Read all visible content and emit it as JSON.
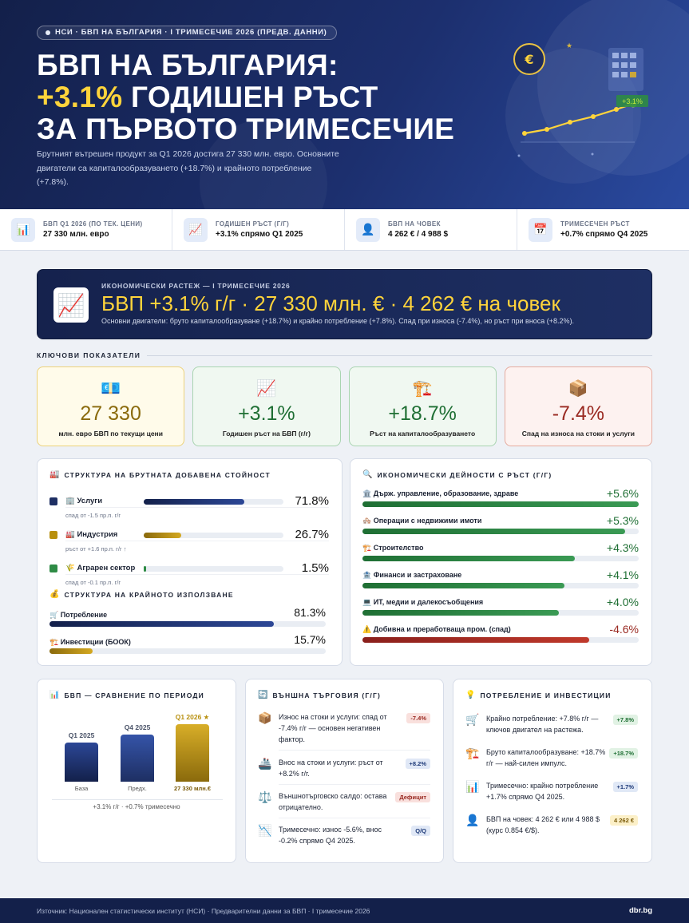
{
  "hero": {
    "pill": "НСИ · БВП НА БЪЛГАРИЯ · I ТРИМЕСЕЧИЕ 2026 (ПРЕДВ. ДАННИ)",
    "title_line1": "БВП НА БЪЛГАРИЯ:",
    "title_highlight": "+3.1%",
    "title_line2_rest": " ГОДИШЕН РЪСТ",
    "title_line3": "ЗА ПЪРВОТО ТРИМЕСЕЧИЕ",
    "description": "Брутният вътрешен продукт за Q1 2026 достига 27 330 млн. евро. Основните двигатели са капиталообразуването (+18.7%) и крайното потребление (+7.8%).",
    "art_badge": "+3.1%",
    "art_coin": "€"
  },
  "kpi_bar": [
    {
      "icon": "bar-chart-icon",
      "glyph": "📊",
      "label": "БВП Q1 2026 (ПО ТЕК. ЦЕНИ)",
      "value": "27 330 млн. евро"
    },
    {
      "icon": "trend-up-icon",
      "glyph": "📈",
      "label": "ГОДИШЕН РЪСТ (Г/Г)",
      "value": "+3.1% спрямо Q1 2025"
    },
    {
      "icon": "person-icon",
      "glyph": "👤",
      "label": "БВП НА ЧОВЕК",
      "value": "4 262 € / 4 988 $"
    },
    {
      "icon": "calendar-icon",
      "glyph": "📅",
      "label": "ТРИМЕСЕЧЕН РЪСТ",
      "value": "+0.7% спрямо Q4 2025"
    }
  ],
  "banner": {
    "icon": "trend-up-icon",
    "subtitle": "ИКОНОМИЧЕСКИ РАСТЕЖ — I ТРИМЕСЕЧИЕ 2026",
    "headline": "БВП +3.1% г/г · 27 330 млн. € · 4 262 € на човек",
    "note": "Основни двигатели: бруто капиталообразуване (+18.7%) и крайно потребление (+7.8%). Спад при износа (-7.4%), но ръст при вноса (+8.2%)."
  },
  "key_section_title": "КЛЮЧОВИ ПОКАЗАТЕЛИ",
  "key_cards": [
    {
      "icon": "money-icon",
      "glyph": "💶",
      "value": "27 330",
      "label": "млн. евро БВП по текущи цени"
    },
    {
      "icon": "trend-up-icon",
      "glyph": "📈",
      "value": "+3.1%",
      "label": "Годишен ръст на БВП (г/г)"
    },
    {
      "icon": "crane-icon",
      "glyph": "🏗️",
      "value": "+18.7%",
      "label": "Ръст на капиталообразуването"
    },
    {
      "icon": "package-icon",
      "glyph": "📦",
      "value": "-7.4%",
      "label": "Спад на износа на стоки и услуги"
    }
  ],
  "structure": {
    "title": "СТРУКТУРА НА БРУТНАТА ДОБАВЕНА СТОЙНОСТ",
    "title_glyph": "🏭",
    "rows": [
      {
        "name": "🏢 Услуги",
        "value": 71.8,
        "value_text": "71.8%",
        "note": "спад от -1.5 пр.п. г/г",
        "color": "#1e2f63"
      },
      {
        "name": "🏭 Индустрия",
        "value": 26.7,
        "value_text": "26.7%",
        "note": "ръст от +1.6 пр.п. г/г ↑",
        "color": "#b8900f"
      },
      {
        "name": "🌾 Аграрен сектор",
        "value": 1.5,
        "value_text": "1.5%",
        "note": "спад от -0.1 пр.п. г/г",
        "color": "#2e8b45"
      }
    ],
    "final_use_title": "СТРУКТУРА НА КРАЙНОТО ИЗПОЛЗВАНЕ",
    "final_use_glyph": "💰",
    "final_use": [
      {
        "name": "🛒 Потребление",
        "value": 81.3,
        "value_text": "81.3%",
        "color": "#1e2f63"
      },
      {
        "name": "🏗️ Инвестиции (БООК)",
        "value": 15.7,
        "value_text": "15.7%",
        "color": "#b8900f"
      }
    ]
  },
  "activities": {
    "title": "ИКОНОМИЧЕСКИ ДЕЙНОСТИ С РЪСТ (Г/Г)",
    "title_glyph": "🔍",
    "rows": [
      {
        "name": "🏛️ Държ. управление, образование, здраве",
        "value": 5.6,
        "value_text": "+5.6%"
      },
      {
        "name": "🏘️ Операции с недвижими имоти",
        "value": 5.3,
        "value_text": "+5.3%"
      },
      {
        "name": "🏗️ Строителство",
        "value": 4.3,
        "value_text": "+4.3%"
      },
      {
        "name": "🏦 Финанси и застраховане",
        "value": 4.1,
        "value_text": "+4.1%"
      },
      {
        "name": "💻 ИТ, медии и далекосъобщения",
        "value": 4.0,
        "value_text": "+4.0%"
      },
      {
        "name": "⚠️ Добивна и преработваща пром. (спад)",
        "value": -4.6,
        "value_text": "-4.6%"
      }
    ]
  },
  "comparison": {
    "title": "БВП — СРАВНЕНИЕ ПО ПЕРИОДИ",
    "title_glyph": "📊",
    "bars": [
      {
        "label": "Q1 2025",
        "caption": "База",
        "relative_height": 0.68,
        "color": "#1e2f63"
      },
      {
        "label": "Q4 2025",
        "caption": "Предх.",
        "relative_height": 0.82,
        "color": "#2c4796"
      },
      {
        "label": "Q1 2026 ★",
        "caption": "27 330 млн.€",
        "relative_height": 1.0,
        "color": "#b8900f"
      }
    ],
    "footnote": "+3.1% г/г · +0.7% тримесечно"
  },
  "trade": {
    "title": "ВЪНШНА ТЪРГОВИЯ (Г/Г)",
    "title_glyph": "🔄",
    "items": [
      {
        "glyph": "📦",
        "icon": "package-icon",
        "text": "Износ на стоки и услуги: спад от -7.4% г/г — основен негативен фактор.",
        "badge": "-7.4%",
        "badge_class": "b-red"
      },
      {
        "glyph": "🚢",
        "icon": "ship-icon",
        "text": "Внос на стоки и услуги: ръст от +8.2% г/г.",
        "badge": "+8.2%",
        "badge_class": "b-blue"
      },
      {
        "glyph": "⚖️",
        "icon": "scales-icon",
        "text": "Външнотърговско салдо: остава отрицателно.",
        "badge": "Дефицит",
        "badge_class": "b-red"
      },
      {
        "glyph": "📉",
        "icon": "trend-down-icon",
        "text": "Тримесечно: износ -5.6%, внос -0.2% спрямо Q4 2025.",
        "badge": "Q/Q",
        "badge_class": "b-blue"
      }
    ]
  },
  "consumption": {
    "title": "ПОТРЕБЛЕНИЕ И ИНВЕСТИЦИИ",
    "title_glyph": "💡",
    "items": [
      {
        "glyph": "🛒",
        "icon": "cart-icon",
        "text": "Крайно потребление: +7.8% г/г — ключов двигател на растежа.",
        "badge": "+7.8%",
        "badge_class": "b-green"
      },
      {
        "glyph": "🏗️",
        "icon": "crane-icon",
        "text": "Бруто капиталообразуване: +18.7% г/г — най-силен импулс.",
        "badge": "+18.7%",
        "badge_class": "b-green"
      },
      {
        "glyph": "📊",
        "icon": "bar-chart-icon",
        "text": "Тримесечно: крайно потребление +1.7% спрямо Q4 2025.",
        "badge": "+1.7%",
        "badge_class": "b-blue"
      },
      {
        "glyph": "👤",
        "icon": "person-icon",
        "text": "БВП на човек: 4 262 € или 4 988 $ (курс 0.854 €/$).",
        "badge": "4 262 €",
        "badge_class": "b-yel"
      }
    ]
  },
  "footer": {
    "source": "Източник: Национален статистически институт (НСИ) · Предварителни данни за БВП · I тримесечие 2026",
    "brand": "dbr.bg"
  }
}
